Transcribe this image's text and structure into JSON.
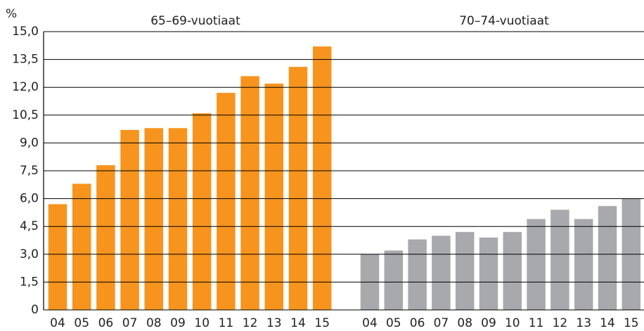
{
  "chart_data": {
    "type": "bar",
    "ylabel": "%",
    "categories": [
      "04",
      "05",
      "06",
      "07",
      "08",
      "09",
      "10",
      "11",
      "12",
      "13",
      "14",
      "15"
    ],
    "series": [
      {
        "name": "65–69-vuotiaat",
        "color": "#f7941d",
        "values": [
          5.7,
          6.8,
          7.8,
          9.7,
          9.8,
          9.8,
          10.6,
          11.7,
          12.6,
          12.2,
          13.1,
          14.2
        ]
      },
      {
        "name": "70–74-vuotiaat",
        "color": "#a7a9ac",
        "values": [
          3.0,
          3.2,
          3.8,
          4.0,
          4.2,
          3.9,
          4.2,
          4.9,
          5.4,
          4.9,
          5.6,
          6.0
        ]
      }
    ],
    "ylim": [
      0,
      15
    ],
    "yticks": [
      0,
      {
        "value": 1.5,
        "label": "1,5"
      },
      {
        "value": 3,
        "label": "3,0"
      },
      {
        "value": 4.5,
        "label": "4,5"
      },
      {
        "value": 6,
        "label": "6,0"
      },
      {
        "value": 7.5,
        "label": "7,5"
      },
      {
        "value": 9,
        "label": "9,0"
      },
      {
        "value": 10.5,
        "label": "10,5"
      },
      {
        "value": 12,
        "label": "12,0"
      },
      {
        "value": 13.5,
        "label": "13,5"
      },
      {
        "value": 15,
        "label": "15,0"
      }
    ],
    "grid": true
  }
}
